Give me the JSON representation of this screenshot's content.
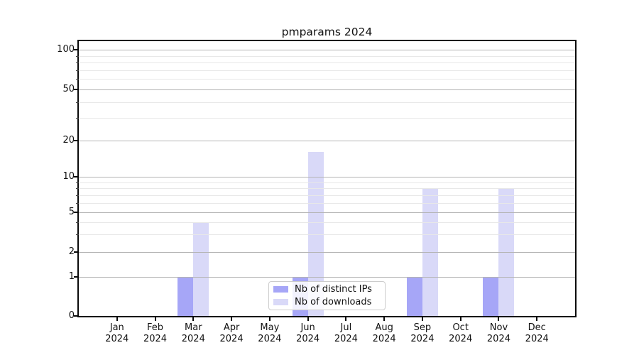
{
  "title": "pmparams 2024",
  "legend": {
    "entries": [
      {
        "label": "Nb of distinct IPs",
        "color": "#a6a6f7"
      },
      {
        "label": "Nb of downloads",
        "color": "#d9d9f8"
      }
    ],
    "position": "lower center"
  },
  "chart_data": {
    "type": "bar",
    "title": "pmparams 2024",
    "categories": [
      "Jan",
      "Feb",
      "Mar",
      "Apr",
      "May",
      "Jun",
      "Jul",
      "Aug",
      "Sep",
      "Oct",
      "Nov",
      "Dec"
    ],
    "x_tick_year": "2024",
    "series": [
      {
        "name": "Nb of distinct IPs",
        "color": "#a6a6f7",
        "values": [
          0,
          0,
          1,
          0,
          0,
          1,
          0,
          0,
          1,
          0,
          1,
          0
        ]
      },
      {
        "name": "Nb of downloads",
        "color": "#d9d9f8",
        "values": [
          0,
          0,
          4,
          0,
          0,
          16,
          0,
          0,
          8,
          0,
          8,
          0
        ]
      }
    ],
    "yscale": "symlog-like",
    "y_major_ticks": [
      0,
      1,
      2,
      5,
      10,
      20,
      50,
      100
    ],
    "y_minor_ticks": [
      3,
      4,
      6,
      7,
      8,
      9,
      30,
      40,
      60,
      70,
      80,
      90
    ],
    "ylim": [
      0,
      117
    ],
    "grid": "both",
    "xlabel": "",
    "ylabel": "",
    "legend_position": "lower center"
  }
}
